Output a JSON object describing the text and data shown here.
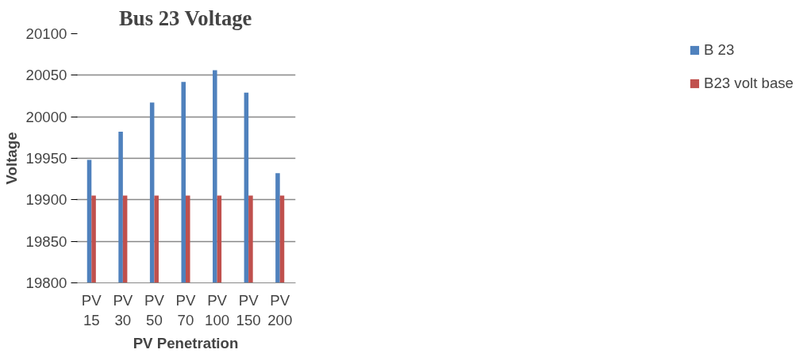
{
  "chart_data": {
    "type": "bar",
    "title": "Bus 23 Voltage",
    "xlabel": "PV Penetration",
    "ylabel": "Voltage",
    "categories": [
      "PV 15",
      "PV 30",
      "PV 50",
      "PV 70",
      "PV 100",
      "PV 150",
      "PV 200"
    ],
    "series": [
      {
        "name": "B 23",
        "color": "#4f81bd",
        "values": [
          19948,
          19982,
          20017,
          20042,
          20056,
          20029,
          19932
        ]
      },
      {
        "name": "B23 volt base",
        "color": "#c0504d",
        "values": [
          19905,
          19905,
          19905,
          19905,
          19905,
          19905,
          19905
        ]
      }
    ],
    "ylim": [
      19800,
      20100
    ],
    "yticks": [
      19800,
      19850,
      19900,
      19950,
      20000,
      20050,
      20100
    ],
    "grid": "y",
    "legend": "right"
  }
}
